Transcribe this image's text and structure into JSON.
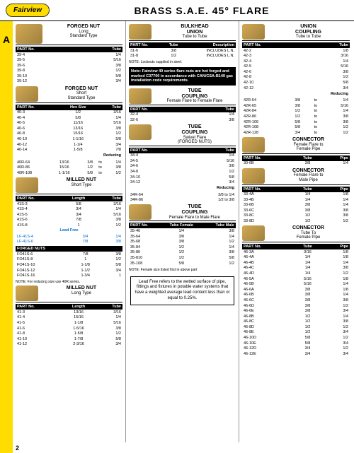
{
  "header": {
    "logo": "Fairview",
    "title": "BRASS S.A.E. 45° FLARE"
  },
  "sidebar": {
    "letter": "A"
  },
  "pagenum": "2",
  "notes": {
    "locknuts": "NOTE: Locknuts supplied in steel.",
    "hotforged": "Note: Fairview 40 series flare nuts are hot forged and marked C37700 in accordance with CAN/CSA-B149 gas installation code requirements.",
    "reducing40r": "NOTE: For reducing size use 40R series.",
    "female_first": "NOTE: Female size listed first in above part",
    "leadfree": "Lead Free refers to the wetted surface of pipe, fittings and fixtures in potable water systems that have a weighted average lead content less than or equal to 0.25%."
  },
  "colors": {
    "brand_yellow": "#ffdd00",
    "brass1": "#d4a850",
    "brass2": "#a07f3a",
    "blue": "#0066cc"
  },
  "sections": {
    "s39": {
      "t1": "FORGED NUT",
      "t2": "Long",
      "t3": "Standard Type",
      "cols": [
        "PART No.",
        "Tube"
      ],
      "rows": [
        [
          "39-4",
          "1/4"
        ],
        [
          "39-5",
          "5/16"
        ],
        [
          "39-6",
          "3/8"
        ],
        [
          "39-8",
          "1/2"
        ],
        [
          "39-10",
          "5/8"
        ],
        [
          "39-12",
          "3/4"
        ]
      ]
    },
    "s40": {
      "t1": "FORGED NUT",
      "t2": "Short",
      "t3": "Standard Type",
      "cols": [
        "PART No.",
        "Hex Size",
        "Tube"
      ],
      "rows": [
        [
          "40-3",
          "1/2",
          "3/16"
        ],
        [
          "40-4",
          "5/8",
          "1/4"
        ],
        [
          "40-5",
          "11/16",
          "5/16"
        ],
        [
          "40-6",
          "13/16",
          "3/8"
        ],
        [
          "40-8",
          "15/16",
          "1/2"
        ],
        [
          "40-10",
          "1-1/16",
          "5/8"
        ],
        [
          "40-12",
          "1-1/4",
          "3/4"
        ],
        [
          "40-14",
          "1-5/8",
          "7/8"
        ]
      ],
      "reducing_label": "Reducing",
      "rrows": [
        [
          "40R-64",
          "13/16",
          "3/8",
          "to",
          "1/4"
        ],
        [
          "40R-86",
          "15/16",
          "1/2",
          "to",
          "3/8"
        ],
        [
          "40R-108",
          "1-1/16",
          "5/8",
          "to",
          "1/2"
        ]
      ]
    },
    "s41s": {
      "t1": "MILLED NUT",
      "t2": "Short Type",
      "cols": [
        "PART No.",
        "Length",
        "Tube"
      ],
      "rows": [
        [
          "41S-3",
          "5/8",
          "3/16"
        ],
        [
          "41S-4",
          "3/4",
          "1/4"
        ],
        [
          "41S-5",
          "3/4",
          "5/16"
        ],
        [
          "41S-6",
          "7/8",
          "3/8"
        ],
        [
          "41S-8",
          "1",
          "1/2"
        ]
      ],
      "lf_label": "Lead Free",
      "lfrows": [
        [
          "LF-41S-4",
          "3/4",
          "1/4"
        ],
        [
          "LF-41S-6",
          "7/8",
          "3/8"
        ]
      ],
      "forged_label": "FORGED NUTS",
      "frows": [
        [
          "FO41S-6",
          "7/8",
          "3/8"
        ],
        [
          "FO41S-8",
          "1",
          "1/2"
        ],
        [
          "FO41S-10",
          "1-1/8",
          "5/8"
        ],
        [
          "FO41S-12",
          "1-1/2",
          "3/4"
        ],
        [
          "FO41S-16",
          "1-3/4",
          "1"
        ]
      ]
    },
    "s41": {
      "t1": "MILLED NUT",
      "t2": "Long Type",
      "cols": [
        "PART No.",
        "Length",
        "Tube"
      ],
      "rows": [
        [
          "41-3",
          "13/16",
          "3/16"
        ],
        [
          "41-4",
          "15/16",
          "1/4"
        ],
        [
          "41-5",
          "1-1/8",
          "5/16"
        ],
        [
          "41-6",
          "1-5/16",
          "3/8"
        ],
        [
          "41-8",
          "1-5/8",
          "1/2"
        ],
        [
          "41-10",
          "1-7/8",
          "5/8"
        ],
        [
          "41-12",
          "2-3/16",
          "3/4"
        ]
      ]
    },
    "s31": {
      "t1": "BULKHEAD",
      "t2": "UNION",
      "t3": "Tube to Tube",
      "cols": [
        "PART No.",
        "Tube",
        "Description"
      ],
      "rows": [
        [
          "31-6",
          "3/8",
          "INCLUDES L.N."
        ],
        [
          "31-8",
          "1/2",
          "INCLUDES L.N."
        ]
      ]
    },
    "s32": {
      "t1": "TUBE",
      "t2": "COUPLING",
      "t3": "Female Flare to Female Flare",
      "cols": [
        "PART No.",
        "Tube"
      ],
      "rows": [
        [
          "32-4",
          "1/4"
        ],
        [
          "32-6",
          "3/8"
        ]
      ]
    },
    "s34": {
      "t1": "TUBE",
      "t2": "COUPLING",
      "t3": "Swivel Flare",
      "t4": "(FORGED NUTS)",
      "cols": [
        "PART No.",
        "Tube"
      ],
      "rows": [
        [
          "34-4",
          "1/4"
        ],
        [
          "34-5",
          "5/16"
        ],
        [
          "34-6",
          "3/8"
        ],
        [
          "34-8",
          "1/2"
        ],
        [
          "34-10",
          "5/8"
        ],
        [
          "34-12",
          "3/4"
        ]
      ],
      "reducing_label": "Reducing",
      "rrows": [
        [
          "34R-64",
          "3/8 to 1/4"
        ],
        [
          "34R-86",
          "1/2 to 3/8"
        ]
      ]
    },
    "s35": {
      "t1": "TUBE",
      "t2": "COUPLING",
      "t3": "Female Flare to Male Flare",
      "cols": [
        "PART No.",
        "Tube Female",
        "Tube Male"
      ],
      "rows": [
        [
          "35-46",
          "1/4",
          "3/8"
        ],
        [
          "35-64",
          "3/8",
          "1/4"
        ],
        [
          "35-68",
          "3/8",
          "1/2"
        ],
        [
          "35-84",
          "1/2",
          "1/4"
        ],
        [
          "35-86",
          "1/2",
          "3/8"
        ],
        [
          "35-810",
          "1/2",
          "5/8"
        ],
        [
          "35-108",
          "5/8",
          "1/2"
        ]
      ]
    },
    "s42": {
      "t1": "UNION",
      "t2": "COUPLING",
      "t3": "Tube to Tube",
      "cols": [
        "PART No.",
        "Tube"
      ],
      "rows": [
        [
          "42-2",
          "1/8"
        ],
        [
          "42-3",
          "3/16"
        ],
        [
          "42-4",
          "1/4"
        ],
        [
          "42-5",
          "5/16"
        ],
        [
          "42-6",
          "3/8"
        ],
        [
          "42-8",
          "1/2"
        ],
        [
          "42-10",
          "5/8"
        ],
        [
          "42-12",
          "3/4"
        ]
      ],
      "reducing_label": "Reducing",
      "rrows": [
        [
          "42R-64",
          "3/8",
          "to",
          "1/4"
        ],
        [
          "42R-65",
          "3/8",
          "to",
          "5/16"
        ],
        [
          "42R-84",
          "1/2",
          "to",
          "1/4"
        ],
        [
          "42R-86",
          "1/2",
          "to",
          "3/8"
        ],
        [
          "42R-106",
          "5/8",
          "to",
          "3/8"
        ],
        [
          "42R-108",
          "5/8",
          "to",
          "1/2"
        ],
        [
          "42R-128",
          "3/4",
          "to",
          "1/2"
        ]
      ]
    },
    "s30": {
      "t1": "CONNECTOR",
      "t2": "Female Flare to",
      "t3": "Female Pipe",
      "cols": [
        "PART No.",
        "Tube",
        "Pipe"
      ],
      "rows": [
        [
          "30-6B",
          "3/8",
          "1/4"
        ]
      ]
    },
    "s33": {
      "t1": "CONNECTOR",
      "t2": "Female Flare to",
      "t3": "Male Pipe",
      "cols": [
        "PART No.",
        "Tube",
        "Pipe"
      ],
      "rows": [
        [
          "33-4A",
          "1/4",
          "1/8"
        ],
        [
          "33-4B",
          "1/4",
          "1/4"
        ],
        [
          "33-6B",
          "3/8",
          "1/4"
        ],
        [
          "33-6C",
          "3/8",
          "3/8"
        ],
        [
          "33-8C",
          "1/2",
          "3/8"
        ],
        [
          "33-8D",
          "1/2",
          "1/2"
        ]
      ]
    },
    "s46": {
      "t1": "CONNECTOR",
      "t2": "Tube To",
      "t3": "Female Pipe",
      "cols": [
        "PART No.",
        "Tube",
        "Pipe"
      ],
      "rows": [
        [
          "46-3A",
          "3/16",
          "1/8"
        ],
        [
          "46-4A",
          "1/4",
          "1/8"
        ],
        [
          "46-4B",
          "1/4",
          "1/4"
        ],
        [
          "46-4C",
          "1/4",
          "3/8"
        ],
        [
          "46-4D",
          "1/4",
          "1/2"
        ],
        [
          "46-5A",
          "5/16",
          "1/8"
        ],
        [
          "46-5B",
          "5/16",
          "1/4"
        ],
        [
          "46-6A",
          "3/8",
          "1/8"
        ],
        [
          "46-6B",
          "3/8",
          "1/4"
        ],
        [
          "46-6C",
          "3/8",
          "3/8"
        ],
        [
          "46-6D",
          "3/8",
          "1/2"
        ],
        [
          "46-6E",
          "3/8",
          "3/4"
        ],
        [
          "46-8B",
          "1/2",
          "1/4"
        ],
        [
          "46-8C",
          "1/2",
          "3/8"
        ],
        [
          "46-8D",
          "1/2",
          "1/2"
        ],
        [
          "46-8E",
          "1/2",
          "3/4"
        ],
        [
          "46-10D",
          "5/8",
          "1/2"
        ],
        [
          "46-10E",
          "5/8",
          "3/4"
        ],
        [
          "46-12D",
          "3/4",
          "1/2"
        ],
        [
          "46-12E",
          "3/4",
          "3/4"
        ]
      ]
    }
  }
}
